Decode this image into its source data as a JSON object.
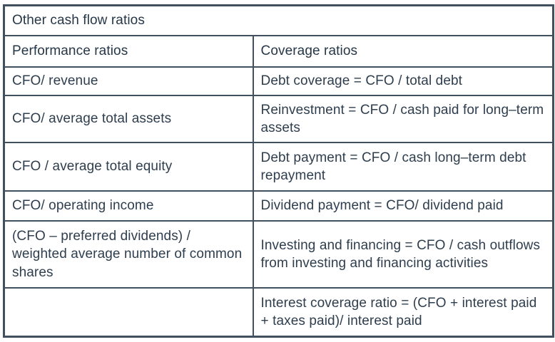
{
  "table": {
    "title": "Other cash flow ratios",
    "columns": [
      {
        "label": "Performance ratios"
      },
      {
        "label": "Coverage ratios"
      }
    ],
    "rows": [
      {
        "performance": "CFO/ revenue",
        "coverage": "Debt coverage = CFO / total debt"
      },
      {
        "performance": "CFO/ average total assets",
        "coverage": "Reinvestment = CFO / cash paid for long–term assets"
      },
      {
        "performance": "CFO / average total equity",
        "coverage": "Debt payment = CFO / cash long–term debt repayment"
      },
      {
        "performance": "CFO/ operating income",
        "coverage": "Dividend payment = CFO/ dividend paid"
      },
      {
        "performance": "(CFO – preferred dividends) / weighted average number of common shares",
        "coverage": "Investing and financing = CFO / cash outflows from investing and financing activities"
      },
      {
        "performance": "",
        "coverage": "Interest coverage ratio = (CFO + interest paid + taxes paid)/ interest paid"
      }
    ],
    "colors": {
      "text": "#2e3e4e",
      "heading_text": "#263748",
      "border": "#41505e",
      "background": "#ffffff"
    }
  }
}
